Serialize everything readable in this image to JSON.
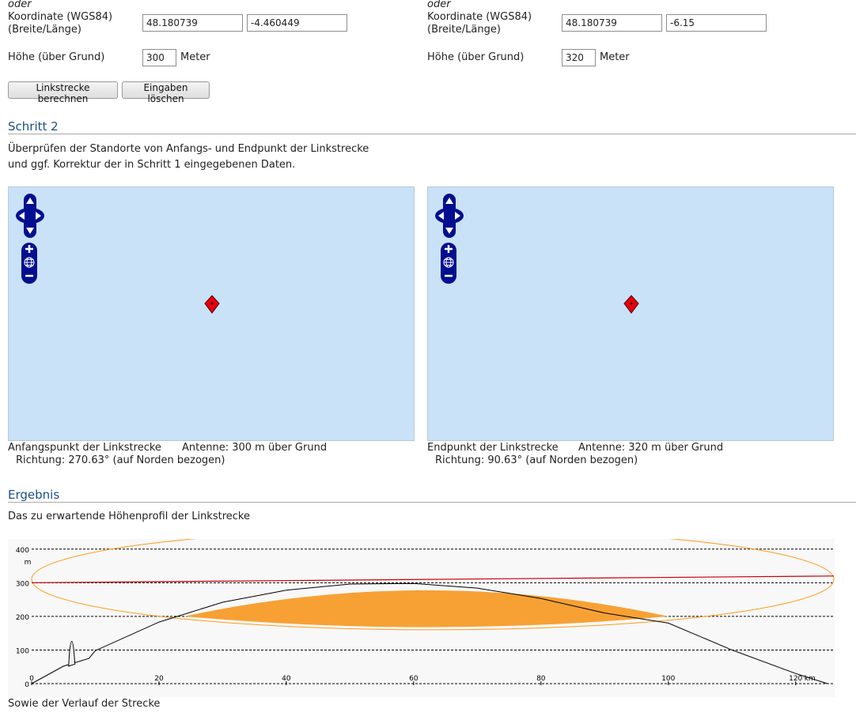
{
  "start": {
    "oder": "oder",
    "coord_label_1": "Koordinate (WGS84)",
    "coord_label_2": "(Breite/Länge)",
    "lat": "48.180739",
    "lon": "-4.460449",
    "height_label": "Höhe (über Grund)",
    "height": "300",
    "height_unit": "Meter"
  },
  "end": {
    "oder": "oder",
    "coord_label_1": "Koordinate (WGS84)",
    "coord_label_2": "(Breite/Länge)",
    "lat": "48.180739",
    "lon": "-6.15",
    "height_label": "Höhe (über Grund)",
    "height": "320",
    "height_unit": "Meter"
  },
  "buttons": {
    "calculate": "Linkstrecke berechnen",
    "clear": "Eingaben löschen"
  },
  "step2": {
    "title": "Schritt 2",
    "desc_1": "Überprüfen der Standorte von Anfangs- und Endpunkt der Linkstrecke",
    "desc_2": "und ggf. Korrektur der in Schritt 1 eingegebenen Daten."
  },
  "maps": {
    "left": {
      "caption": "Anfangspunkt der Linkstrecke",
      "antenna": "Antenne: 300 m über Grund",
      "direction": "Richtung: 270.63° (auf Norden bezogen)"
    },
    "right": {
      "caption": "Endpunkt der Linkstrecke",
      "antenna": "Antenne: 320 m über Grund",
      "direction": "Richtung: 90.63° (auf Norden bezogen)"
    },
    "colors": {
      "water": "#c9e2f8",
      "control": "#000f8f",
      "marker": "#e8000b"
    },
    "icons": [
      "pan-control-icon",
      "zoom-in-icon",
      "globe-icon",
      "zoom-out-icon",
      "location-marker-icon"
    ]
  },
  "result": {
    "title": "Ergebnis",
    "desc": "Das zu erwartende Höhenprofil der Linkstrecke",
    "footer": "Sowie der Verlauf der Strecke"
  },
  "chart_data": {
    "type": "area",
    "x_unit": "km",
    "y_unit": "m",
    "xlim": [
      0,
      126
    ],
    "ylim": [
      0,
      430
    ],
    "x_ticks": [
      0,
      20,
      40,
      60,
      80,
      100,
      120
    ],
    "x_tick_labels": [
      "0",
      "20",
      "40",
      "60",
      "80",
      "100",
      "120"
    ],
    "y_ticks": [
      0,
      100,
      200,
      300,
      400
    ],
    "grid": true,
    "terrain_with_earth_curvature": [
      [
        0,
        0
      ],
      [
        5,
        52
      ],
      [
        9,
        75
      ],
      [
        10,
        98
      ],
      [
        20,
        183
      ],
      [
        30,
        242
      ],
      [
        40,
        278
      ],
      [
        50,
        296
      ],
      [
        60,
        298
      ],
      [
        70,
        284
      ],
      [
        80,
        253
      ],
      [
        90,
        210
      ],
      [
        100,
        180
      ],
      [
        110,
        100
      ],
      [
        120,
        30
      ],
      [
        125,
        0
      ]
    ],
    "terrain_spike": {
      "x": 6.3,
      "peak": 148
    },
    "line_of_sight": [
      [
        0,
        300
      ],
      [
        126,
        320
      ]
    ],
    "fresnel_ellipse": {
      "x0": 0,
      "x1": 126,
      "center_y": 310,
      "half_height": 150
    },
    "obstructed_zone": {
      "x_start": 24,
      "x_end": 100,
      "top": 300,
      "bottom": 160
    },
    "colors": {
      "fresnel": "#ff9a1a",
      "obstruction": "#f7a134",
      "line_of_sight": "#c8000b",
      "terrain": "#000000",
      "background": "#f8f8f8"
    }
  }
}
